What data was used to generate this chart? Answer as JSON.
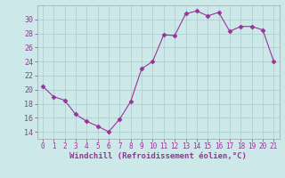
{
  "x": [
    0,
    1,
    2,
    3,
    4,
    5,
    6,
    7,
    8,
    9,
    10,
    11,
    12,
    13,
    14,
    15,
    16,
    17,
    18,
    19,
    20,
    21
  ],
  "y": [
    20.5,
    19.0,
    18.5,
    16.5,
    15.5,
    14.8,
    14.0,
    15.8,
    18.3,
    23.0,
    24.0,
    27.8,
    27.7,
    30.8,
    31.2,
    30.5,
    31.0,
    28.3,
    29.0,
    29.0,
    28.5,
    24.0
  ],
  "line_color": "#993399",
  "marker": "D",
  "marker_size": 2.5,
  "bg_color": "#cce8e8",
  "grid_color": "#aacccc",
  "xlabel": "Windchill (Refroidissement éolien,°C)",
  "xlabel_color": "#993399",
  "tick_color": "#993399",
  "label_color": "#993399",
  "ylim": [
    13,
    32
  ],
  "xlim": [
    -0.5,
    21.5
  ],
  "yticks": [
    14,
    16,
    18,
    20,
    22,
    24,
    26,
    28,
    30
  ],
  "xticks": [
    0,
    1,
    2,
    3,
    4,
    5,
    6,
    7,
    8,
    9,
    10,
    11,
    12,
    13,
    14,
    15,
    16,
    17,
    18,
    19,
    20,
    21
  ]
}
